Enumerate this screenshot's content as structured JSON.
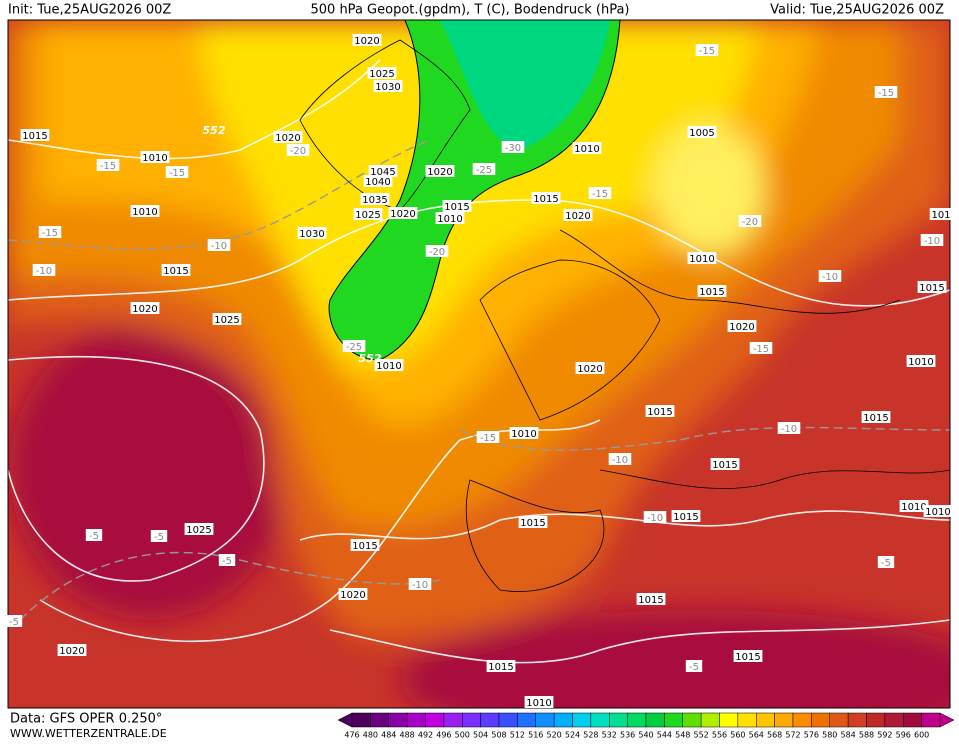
{
  "header": {
    "init": "Init: Tue,25AUG2026 00Z",
    "title": "500 hPa Geopot.(gpdm), T (C), Bodendruck (hPa)",
    "valid": "Valid: Tue,25AUG2026 00Z"
  },
  "footer": {
    "data": "Data: GFS OPER 0.250°",
    "site": "WWW.WETTERZENTRALE.DE"
  },
  "colorbar": {
    "ticks": [
      476,
      480,
      484,
      488,
      492,
      496,
      500,
      504,
      508,
      512,
      516,
      520,
      524,
      528,
      532,
      536,
      540,
      544,
      548,
      552,
      556,
      560,
      564,
      568,
      572,
      576,
      580,
      584,
      588,
      592,
      596,
      600
    ],
    "colors": [
      "#4d005e",
      "#6a007f",
      "#8a00a6",
      "#a800c8",
      "#c000e0",
      "#9a20f0",
      "#7a30ff",
      "#5a3cff",
      "#3a50ff",
      "#2070ff",
      "#1090ff",
      "#00b0ff",
      "#00d0f0",
      "#00e0c0",
      "#00e090",
      "#00dc60",
      "#00d040",
      "#20d820",
      "#60e000",
      "#b0f000",
      "#ffff00",
      "#ffe000",
      "#ffc400",
      "#ffa800",
      "#ff8c00",
      "#f07000",
      "#e05818",
      "#d04020",
      "#c02828",
      "#b01838",
      "#a00c40",
      "#c0008a"
    ]
  },
  "map_labels": {
    "isobars": [
      "1020",
      "1025",
      "1030",
      "1015",
      "1010",
      "1020",
      "1045",
      "1040",
      "1020",
      "1035",
      "1025",
      "1020",
      "1015",
      "1010",
      "1010",
      "1030",
      "1015",
      "1020",
      "1005",
      "1010",
      "1015",
      "1010",
      "1015",
      "1020",
      "1025",
      "1020",
      "1010",
      "1020",
      "1015",
      "1010",
      "1015",
      "1015",
      "1010",
      "1015",
      "1015",
      "1015",
      "1010",
      "1010",
      "1025",
      "1015",
      "1020",
      "1015",
      "1020",
      "1015",
      "1015",
      "1010",
      "101"
    ],
    "temperatures": [
      "-15",
      "-15",
      "-15",
      "-15",
      "-20",
      "-30",
      "-25",
      "-15",
      "-20",
      "-15",
      "-10",
      "-20",
      "-10",
      "-10",
      "-10",
      "-25",
      "-15",
      "-15",
      "-10",
      "-10",
      "-10",
      "-5",
      "-5",
      "-5",
      "-10",
      "-5",
      "-5",
      "-5"
    ],
    "heights": [
      "552",
      "552"
    ]
  }
}
